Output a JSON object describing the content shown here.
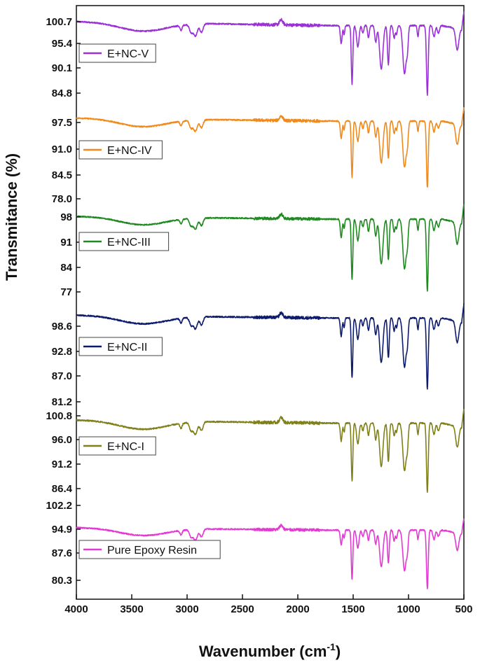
{
  "chart_data": {
    "type": "line",
    "title": "",
    "xlabel_main": "Wavenumber (cm",
    "xlabel_sup": "-1",
    "xlabel_close": ")",
    "ylabel": "Transmitance (%)",
    "xlim": [
      4000,
      500
    ],
    "x_ticks": [
      "4000",
      "3500",
      "3000",
      "2500",
      "2000",
      "1500",
      "1000",
      "500"
    ],
    "grid": false,
    "legend_placement": "left, inside each panel",
    "series": [
      {
        "name": "E+NC-V",
        "color": "#9b30d9",
        "ylim": [
          82,
          103
        ],
        "ticks": [
          "100.7",
          "95.4",
          "90.1",
          "84.8"
        ],
        "baseline": 100.4,
        "mid": 99.5,
        "broad_dip": 98.5,
        "ch_dip": 97.3,
        "min": 82.8
      },
      {
        "name": "E+NC-IV",
        "color": "#f08a1c",
        "ylim": [
          77,
          101
        ],
        "ticks": [
          "97.5",
          "91.0",
          "84.5",
          "78.0"
        ],
        "baseline": 98.6,
        "mid": 97.8,
        "broad_dip": 96.6,
        "ch_dip": 95.3,
        "min": 79.5
      },
      {
        "name": "E+NC-III",
        "color": "#1f8a1f",
        "ylim": [
          74,
          101
        ],
        "ticks": [
          "98",
          "91",
          "84",
          "77"
        ],
        "baseline": 98.2,
        "mid": 97.4,
        "broad_dip": 96.0,
        "ch_dip": 94.6,
        "min": 75.2
      },
      {
        "name": "E+NC-II",
        "color": "#0d1b6e",
        "ylim": [
          79,
          102
        ],
        "ticks": [
          "98.6",
          "92.8",
          "87.0",
          "81.2"
        ],
        "baseline": 99.6,
        "mid": 98.9,
        "broad_dip": 97.7,
        "ch_dip": 96.3,
        "min": 80.4
      },
      {
        "name": "E+NC-I",
        "color": "#808018",
        "ylim": [
          84.5,
          102.5
        ],
        "ticks": [
          "100.8",
          "96.0",
          "91.2",
          "86.4"
        ],
        "baseline": 99.7,
        "mid": 99.1,
        "broad_dip": 98.1,
        "ch_dip": 97.0,
        "min": 84.9
      },
      {
        "name": "Pure Epoxy Resin",
        "color": "#e23ad2",
        "ylim": [
          77,
          106
        ],
        "ticks": [
          "102.2",
          "94.9",
          "87.6",
          "80.3"
        ],
        "baseline": 98.7,
        "mid": 97.9,
        "broad_dip": 96.4,
        "ch_dip": 94.6,
        "min": 77.8
      }
    ]
  }
}
